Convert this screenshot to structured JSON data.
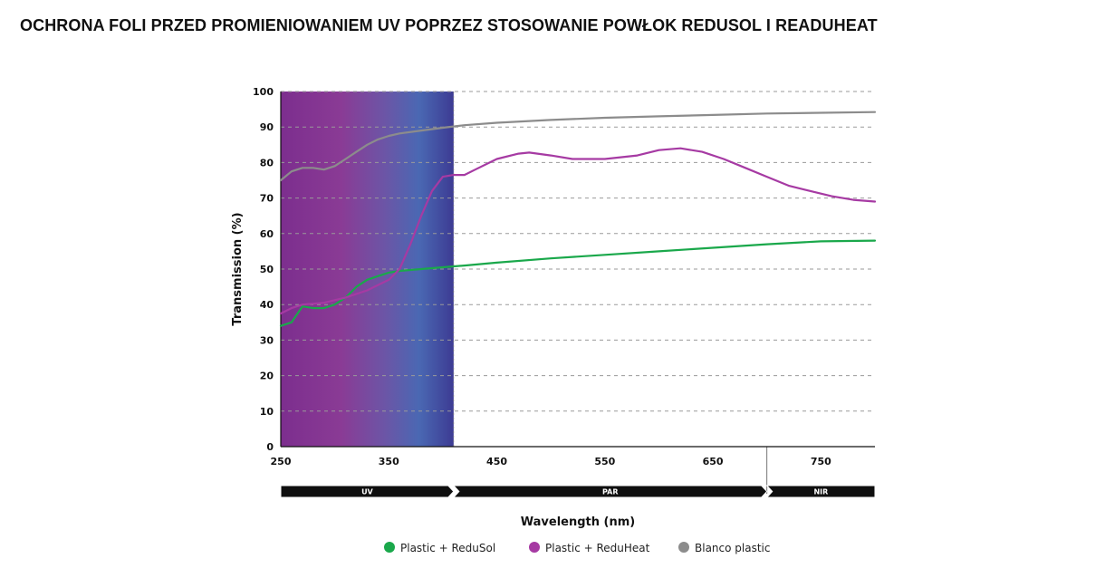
{
  "page": {
    "title": "OCHRONA FOLI PRZED PROMIENIOWANIEM UV POPRZEZ STOSOWANIE POWŁOK REDUSOL I READUHEAT"
  },
  "chart_data": {
    "type": "line",
    "title": "OCHRONA FOLI PRZED PROMIENIOWANIEM UV POPRZEZ STOSOWANIE POWŁOK REDUSOL I READUHEAT",
    "xlabel": "Wavelength (nm)",
    "ylabel": "Transmission (%)",
    "xlim": [
      250,
      800
    ],
    "ylim": [
      0,
      100
    ],
    "xticks": [
      250,
      350,
      450,
      550,
      650,
      750
    ],
    "yticks": [
      0,
      10,
      20,
      30,
      40,
      50,
      60,
      70,
      80,
      90,
      100
    ],
    "grid": "horizontal-dashed",
    "legend_position": "bottom",
    "regions": [
      {
        "label": "UV",
        "from": 250,
        "to": 410
      },
      {
        "label": "PAR",
        "from": 410,
        "to": 700
      },
      {
        "label": "NIR",
        "from": 700,
        "to": 800
      }
    ],
    "series": [
      {
        "name": "Plastic + ReduSol",
        "color": "#1aa84b",
        "points": [
          [
            250,
            34
          ],
          [
            260,
            35
          ],
          [
            270,
            39.5
          ],
          [
            280,
            39
          ],
          [
            290,
            39
          ],
          [
            300,
            40
          ],
          [
            310,
            42
          ],
          [
            320,
            45
          ],
          [
            330,
            47
          ],
          [
            340,
            48
          ],
          [
            350,
            49
          ],
          [
            360,
            49.5
          ],
          [
            380,
            50
          ],
          [
            400,
            50.5
          ],
          [
            420,
            51
          ],
          [
            450,
            51.8
          ],
          [
            500,
            53
          ],
          [
            550,
            54
          ],
          [
            600,
            55
          ],
          [
            650,
            56
          ],
          [
            700,
            57
          ],
          [
            750,
            57.8
          ],
          [
            800,
            58
          ]
        ]
      },
      {
        "name": "Plastic + ReduHeat",
        "color": "#a63aa3",
        "points": [
          [
            250,
            37.5
          ],
          [
            260,
            39
          ],
          [
            270,
            40
          ],
          [
            290,
            40.5
          ],
          [
            310,
            42
          ],
          [
            330,
            44
          ],
          [
            350,
            47
          ],
          [
            360,
            50
          ],
          [
            370,
            57
          ],
          [
            380,
            65
          ],
          [
            390,
            72
          ],
          [
            400,
            76
          ],
          [
            410,
            76.5
          ],
          [
            420,
            76.5
          ],
          [
            430,
            78
          ],
          [
            450,
            81
          ],
          [
            470,
            82.5
          ],
          [
            480,
            82.8
          ],
          [
            500,
            82
          ],
          [
            520,
            81
          ],
          [
            550,
            81
          ],
          [
            580,
            82
          ],
          [
            600,
            83.5
          ],
          [
            620,
            84
          ],
          [
            640,
            83
          ],
          [
            660,
            81
          ],
          [
            680,
            78.5
          ],
          [
            700,
            76
          ],
          [
            720,
            73.5
          ],
          [
            740,
            72
          ],
          [
            760,
            70.5
          ],
          [
            780,
            69.5
          ],
          [
            800,
            69
          ]
        ]
      },
      {
        "name": "Blanco plastic",
        "color": "#8c8c8c",
        "points": [
          [
            250,
            75
          ],
          [
            260,
            77.5
          ],
          [
            270,
            78.5
          ],
          [
            280,
            78.5
          ],
          [
            290,
            78
          ],
          [
            300,
            79
          ],
          [
            310,
            81
          ],
          [
            320,
            83
          ],
          [
            330,
            85
          ],
          [
            340,
            86.5
          ],
          [
            350,
            87.5
          ],
          [
            360,
            88.2
          ],
          [
            380,
            89
          ],
          [
            400,
            89.8
          ],
          [
            420,
            90.5
          ],
          [
            450,
            91.2
          ],
          [
            500,
            92
          ],
          [
            550,
            92.6
          ],
          [
            600,
            93
          ],
          [
            650,
            93.4
          ],
          [
            700,
            93.8
          ],
          [
            750,
            94
          ],
          [
            800,
            94.2
          ]
        ]
      }
    ]
  }
}
